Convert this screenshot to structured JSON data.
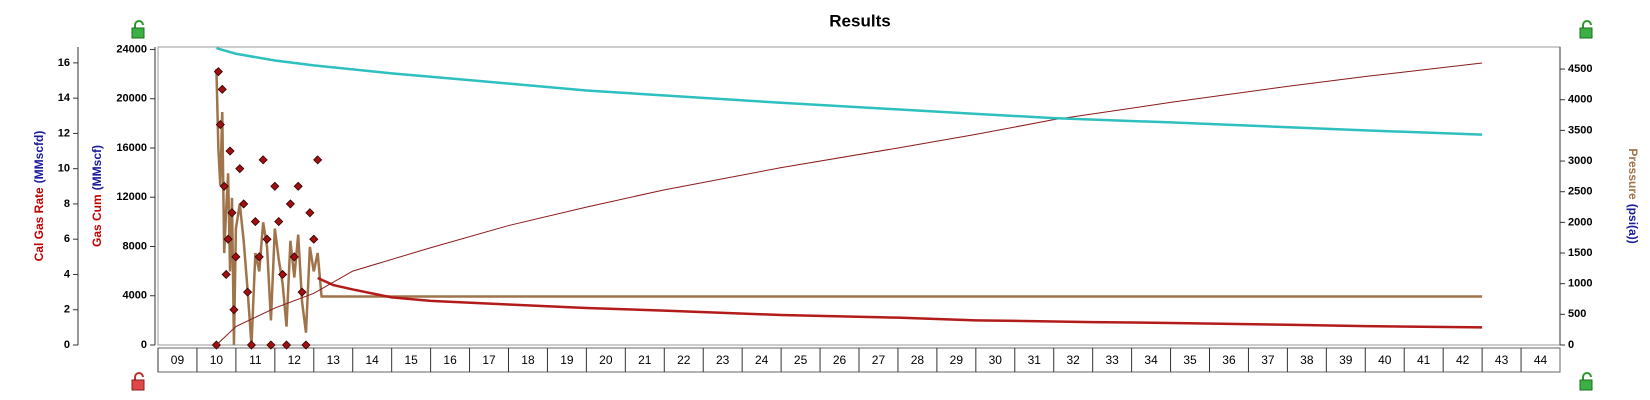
{
  "chart_data": {
    "type": "line",
    "title": "Results",
    "xlim": [
      9,
      45
    ],
    "xticks": [
      {
        "value": 9,
        "label": "09"
      },
      10,
      11,
      12,
      13,
      14,
      15,
      16,
      17,
      18,
      19,
      20,
      21,
      22,
      23,
      24,
      25,
      26,
      27,
      28,
      29,
      30,
      31,
      32,
      33,
      34,
      35,
      36,
      37,
      38,
      39,
      40,
      41,
      42,
      43,
      44
    ],
    "axes": {
      "rate": {
        "label": [
          "Cal Gas Rate",
          "(MMscfd)"
        ],
        "ylim": [
          0,
          16.9
        ],
        "yticks": [
          0,
          2,
          4,
          6,
          8,
          10,
          12,
          14,
          16
        ]
      },
      "cum": {
        "label": [
          "Gas Cum",
          "(MMscf)"
        ],
        "ylim": [
          0,
          24200
        ],
        "yticks": [
          0,
          4000,
          8000,
          12000,
          16000,
          20000,
          24000
        ]
      },
      "pressure": {
        "label": [
          "Pressure",
          "(psi(a))"
        ],
        "ylim": [
          0,
          4860
        ],
        "yticks": [
          0,
          500,
          1000,
          1500,
          2000,
          2500,
          3000,
          3500,
          4000,
          4500
        ]
      }
    },
    "series": [
      {
        "kind": "line",
        "axis": "pressure",
        "color": "#a0744a",
        "width": 2.5,
        "x": [
          10.5,
          10.55,
          10.6,
          10.65,
          10.7,
          10.75,
          10.8,
          10.85,
          10.9,
          10.95,
          11.0,
          11.1,
          11.2,
          11.3,
          11.4,
          11.5,
          11.6,
          11.7,
          11.8,
          11.9,
          12.0,
          12.1,
          12.2,
          12.3,
          12.4,
          12.5,
          12.6,
          12.7,
          12.8,
          12.9,
          13.0,
          13.1,
          13.2,
          43
        ],
        "values": [
          4500,
          3200,
          2600,
          3800,
          1500,
          2200,
          2800,
          1200,
          2400,
          0,
          1900,
          2300,
          1700,
          900,
          0,
          1500,
          1200,
          2000,
          1600,
          400,
          1900,
          1400,
          1000,
          300,
          1700,
          1100,
          1800,
          700,
          200,
          1600,
          1200,
          1500,
          790,
          790
        ]
      },
      {
        "kind": "scatter",
        "axis": "rate",
        "color": "#a01010",
        "x": [
          10.5,
          10.55,
          10.6,
          10.65,
          10.7,
          10.75,
          10.8,
          10.85,
          10.9,
          10.95,
          11.0,
          11.1,
          11.2,
          11.3,
          11.4,
          11.5,
          11.6,
          11.7,
          11.8,
          11.9,
          12.0,
          12.1,
          12.2,
          12.3,
          12.4,
          12.5,
          12.6,
          12.7,
          12.8,
          12.9,
          13.0,
          13.1
        ],
        "values": [
          0,
          15.5,
          12.5,
          14.5,
          9,
          4,
          6,
          11,
          7.5,
          2,
          5,
          10,
          8,
          3,
          0,
          7,
          5,
          10.5,
          6,
          0,
          9,
          7,
          4,
          0,
          8,
          5,
          9,
          3,
          0,
          7.5,
          6,
          10.5
        ]
      },
      {
        "kind": "line",
        "axis": "rate",
        "color": "#b31b1b",
        "width": 2.5,
        "x": [
          13.1,
          13.5,
          14,
          15,
          16,
          18,
          20,
          22,
          25,
          28,
          30,
          33,
          35,
          38,
          40,
          43
        ],
        "values": [
          3.8,
          3.4,
          3.15,
          2.7,
          2.5,
          2.3,
          2.1,
          1.95,
          1.7,
          1.55,
          1.4,
          1.3,
          1.25,
          1.15,
          1.07,
          1.0
        ]
      },
      {
        "kind": "line",
        "axis": "cum",
        "color": "#8b1a1a",
        "width": 1,
        "x": [
          10.5,
          11,
          12,
          13,
          14,
          16,
          18,
          20,
          22,
          25,
          28,
          30,
          32,
          35,
          38,
          40,
          43
        ],
        "values": [
          0,
          1500,
          3000,
          4200,
          6000,
          7900,
          9700,
          11200,
          12600,
          14400,
          16000,
          17100,
          18300,
          19700,
          21000,
          21800,
          22900
        ]
      },
      {
        "kind": "line",
        "axis": "pressure",
        "color": "#2ebfbf",
        "width": 2.5,
        "x": [
          10.5,
          11,
          12,
          13,
          15,
          17,
          20,
          25,
          30,
          32,
          35,
          40,
          43
        ],
        "values": [
          4840,
          4750,
          4640,
          4560,
          4430,
          4320,
          4150,
          3950,
          3770,
          3700,
          3630,
          3500,
          3430
        ]
      }
    ]
  }
}
